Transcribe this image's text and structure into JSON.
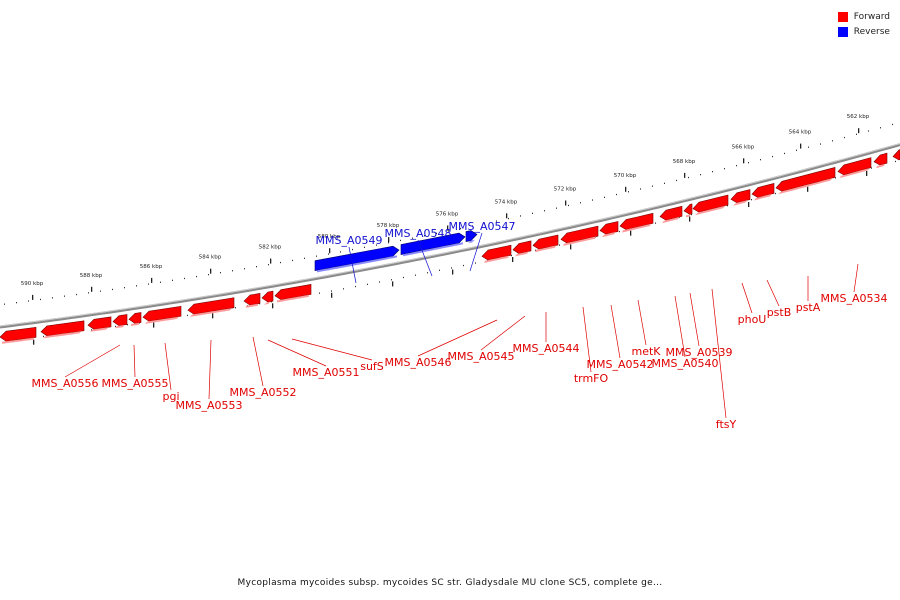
{
  "legend": {
    "forward_label": "Forward",
    "reverse_label": "Reverse",
    "forward_color": "#ff0000",
    "reverse_color": "#0000ff"
  },
  "caption": "Mycoplasma mycoides subsp. mycoides SC str. Gladysdale MU clone SC5, complete ge...",
  "scale_labels": [
    "590 kbp",
    "588 kbp",
    "586 kbp",
    "584 kbp",
    "582 kbp",
    "580 kbp",
    "578 kbp",
    "576 kbp",
    "574 kbp",
    "572 kbp",
    "570 kbp",
    "568 kbp",
    "566 kbp",
    "564 kbp",
    "562 kbp"
  ],
  "forward_labels": [
    "MMS_A0556",
    "MMS_A0555",
    "pgi",
    "MMS_A0553",
    "MMS_A0552",
    "MMS_A0551",
    "sufS",
    "MMS_A0546",
    "MMS_A0545",
    "MMS_A0544",
    "trmFO",
    "MMS_A0542",
    "metK",
    "MMS_A0540",
    "MMS_A0539",
    "ftsY",
    "phoU",
    "pstB",
    "pstA",
    "MMS_A0534"
  ],
  "reverse_labels": [
    "MMS_A0549",
    "MMS_A0548",
    "MMS_A0547"
  ]
}
